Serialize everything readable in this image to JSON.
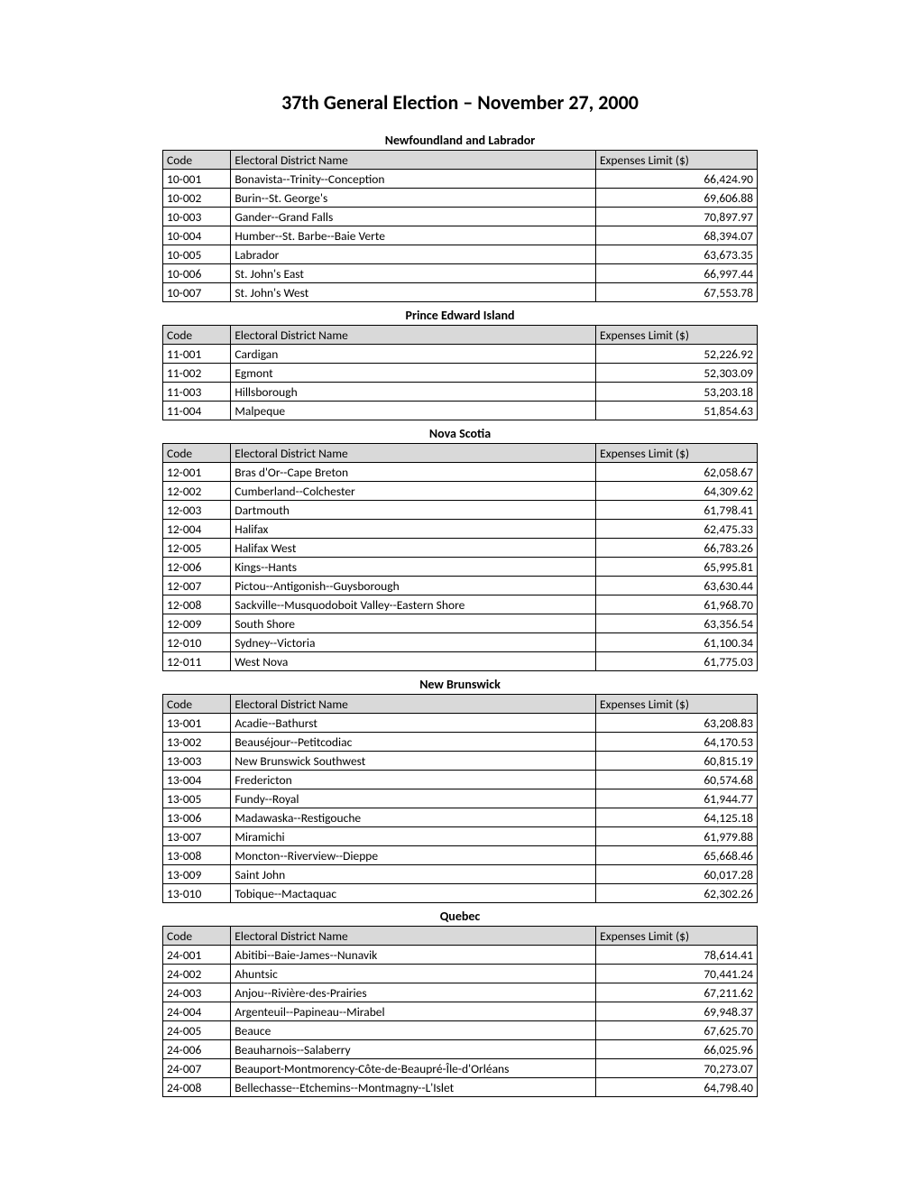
{
  "title": "37th General Election – November 27, 2000",
  "columns": {
    "code": "Code",
    "name": "Electoral District Name",
    "limit": "Expenses Limit ($)"
  },
  "sections": [
    {
      "title": "Newfoundland and Labrador",
      "rows": [
        {
          "code": "10-001",
          "name": "Bonavista--Trinity--Conception",
          "limit": "66,424.90"
        },
        {
          "code": "10-002",
          "name": "Burin--St. George's",
          "limit": "69,606.88"
        },
        {
          "code": "10-003",
          "name": "Gander--Grand Falls",
          "limit": "70,897.97"
        },
        {
          "code": "10-004",
          "name": "Humber--St. Barbe--Baie Verte",
          "limit": "68,394.07"
        },
        {
          "code": "10-005",
          "name": "Labrador",
          "limit": "63,673.35"
        },
        {
          "code": "10-006",
          "name": "St. John's East",
          "limit": "66,997.44"
        },
        {
          "code": "10-007",
          "name": "St. John's West",
          "limit": "67,553.78"
        }
      ]
    },
    {
      "title": "Prince Edward Island",
      "rows": [
        {
          "code": "11-001",
          "name": "Cardigan",
          "limit": "52,226.92"
        },
        {
          "code": "11-002",
          "name": "Egmont",
          "limit": "52,303.09"
        },
        {
          "code": "11-003",
          "name": "Hillsborough",
          "limit": "53,203.18"
        },
        {
          "code": "11-004",
          "name": "Malpeque",
          "limit": "51,854.63"
        }
      ]
    },
    {
      "title": "Nova Scotia",
      "rows": [
        {
          "code": "12-001",
          "name": "Bras d'Or--Cape Breton",
          "limit": "62,058.67"
        },
        {
          "code": "12-002",
          "name": "Cumberland--Colchester",
          "limit": "64,309.62"
        },
        {
          "code": "12-003",
          "name": "Dartmouth",
          "limit": "61,798.41"
        },
        {
          "code": "12-004",
          "name": "Halifax",
          "limit": "62,475.33"
        },
        {
          "code": "12-005",
          "name": "Halifax West",
          "limit": "66,783.26"
        },
        {
          "code": "12-006",
          "name": "Kings--Hants",
          "limit": "65,995.81"
        },
        {
          "code": "12-007",
          "name": "Pictou--Antigonish--Guysborough",
          "limit": "63,630.44"
        },
        {
          "code": "12-008",
          "name": "Sackville--Musquodoboit Valley--Eastern Shore",
          "limit": "61,968.70"
        },
        {
          "code": "12-009",
          "name": "South Shore",
          "limit": "63,356.54"
        },
        {
          "code": "12-010",
          "name": "Sydney--Victoria",
          "limit": "61,100.34"
        },
        {
          "code": "12-011",
          "name": "West Nova",
          "limit": "61,775.03"
        }
      ]
    },
    {
      "title": "New Brunswick",
      "rows": [
        {
          "code": "13-001",
          "name": "Acadie--Bathurst",
          "limit": "63,208.83"
        },
        {
          "code": "13-002",
          "name": "Beauséjour--Petitcodiac",
          "limit": "64,170.53"
        },
        {
          "code": "13-003",
          "name": "New Brunswick Southwest",
          "limit": "60,815.19"
        },
        {
          "code": "13-004",
          "name": "Fredericton",
          "limit": "60,574.68"
        },
        {
          "code": "13-005",
          "name": "Fundy--Royal",
          "limit": "61,944.77"
        },
        {
          "code": "13-006",
          "name": "Madawaska--Restigouche",
          "limit": "64,125.18"
        },
        {
          "code": "13-007",
          "name": "Miramichi",
          "limit": "61,979.88"
        },
        {
          "code": "13-008",
          "name": "Moncton--Riverview--Dieppe",
          "limit": "65,668.46"
        },
        {
          "code": "13-009",
          "name": "Saint John",
          "limit": "60,017.28"
        },
        {
          "code": "13-010",
          "name": "Tobique--Mactaquac",
          "limit": "62,302.26"
        }
      ]
    },
    {
      "title": "Quebec",
      "rows": [
        {
          "code": "24-001",
          "name": "Abitibi--Baie-James--Nunavik",
          "limit": "78,614.41"
        },
        {
          "code": "24-002",
          "name": "Ahuntsic",
          "limit": "70,441.24"
        },
        {
          "code": "24-003",
          "name": "Anjou--Rivière-des-Prairies",
          "limit": "67,211.62"
        },
        {
          "code": "24-004",
          "name": "Argenteuil--Papineau--Mirabel",
          "limit": "69,948.37"
        },
        {
          "code": "24-005",
          "name": "Beauce",
          "limit": "67,625.70"
        },
        {
          "code": "24-006",
          "name": "Beauharnois--Salaberry",
          "limit": "66,025.96"
        },
        {
          "code": "24-007",
          "name": "Beauport-Montmorency-Côte-de-Beaupré-Île-d'Orléans",
          "limit": "70,273.07"
        },
        {
          "code": "24-008",
          "name": "Bellechasse--Etchemins--Montmagny--L'Islet",
          "limit": "64,798.40"
        }
      ]
    }
  ]
}
